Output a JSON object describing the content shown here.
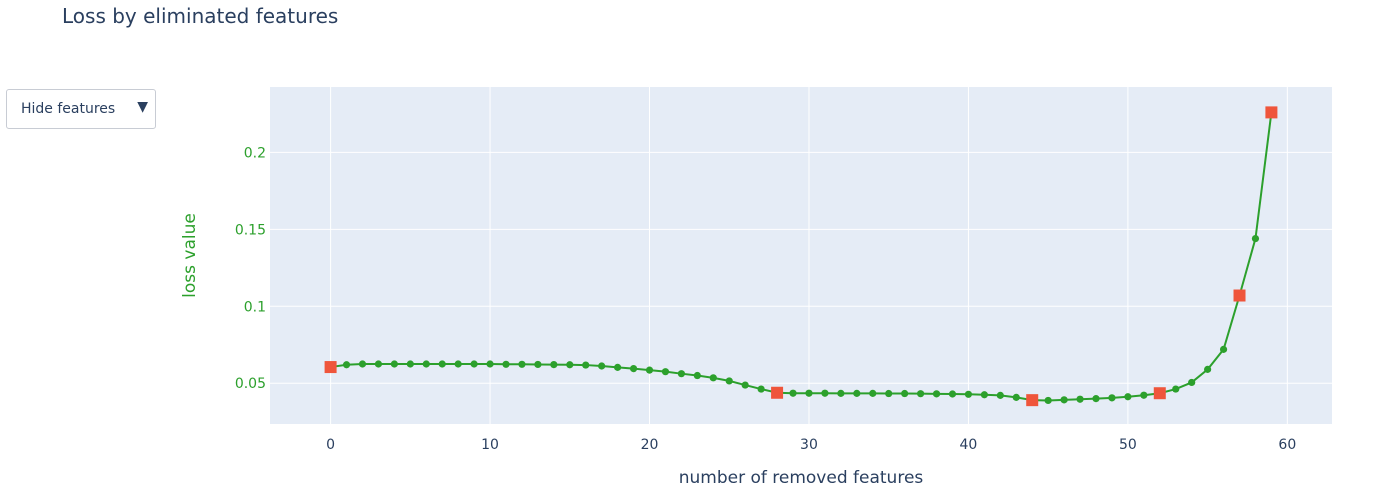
{
  "title": "Loss by eliminated features",
  "dropdown": {
    "selected": "Hide features",
    "arrow_icon": "triangle-down-icon"
  },
  "colors": {
    "line": "#2ca02c",
    "highlight": "#ef553b",
    "plot_bg": "#e5ecf6",
    "grid": "#ffffff",
    "text": "#2a3f5f"
  },
  "chart_data": {
    "type": "line",
    "xlabel": "number of removed features",
    "ylabel": "loss value",
    "xlim": [
      -3.8,
      62.8
    ],
    "ylim": [
      0.0235,
      0.2425
    ],
    "xticks": [
      0,
      10,
      20,
      30,
      40,
      50,
      60
    ],
    "xtick_labels": [
      "0",
      "10",
      "20",
      "30",
      "40",
      "50",
      "60"
    ],
    "yticks": [
      0.05,
      0.1,
      0.15,
      0.2
    ],
    "ytick_labels": [
      "0.05",
      "0.1",
      "0.15",
      "0.2"
    ],
    "grid": true,
    "series": [
      {
        "x": [
          0,
          1,
          2,
          3,
          4,
          5,
          6,
          7,
          8,
          9,
          10,
          11,
          12,
          13,
          14,
          15,
          16,
          17,
          18,
          19,
          20,
          21,
          22,
          23,
          24,
          25,
          26,
          27,
          28,
          29,
          30,
          31,
          32,
          33,
          34,
          35,
          36,
          37,
          38,
          39,
          40,
          41,
          42,
          43,
          44,
          45,
          46,
          47,
          48,
          49,
          50,
          51,
          52,
          53,
          54,
          55,
          56,
          57,
          58,
          59
        ],
        "y": [
          0.0605,
          0.062,
          0.0625,
          0.0625,
          0.0625,
          0.0625,
          0.0625,
          0.0625,
          0.0625,
          0.0625,
          0.0625,
          0.0623,
          0.0623,
          0.0622,
          0.0621,
          0.062,
          0.0618,
          0.0612,
          0.0603,
          0.0595,
          0.0585,
          0.0575,
          0.0562,
          0.055,
          0.0535,
          0.0515,
          0.0488,
          0.0462,
          0.0438,
          0.0435,
          0.0435,
          0.0435,
          0.0434,
          0.0434,
          0.0434,
          0.0433,
          0.0433,
          0.0432,
          0.0431,
          0.043,
          0.0428,
          0.0425,
          0.0421,
          0.0408,
          0.039,
          0.0388,
          0.0392,
          0.0396,
          0.04,
          0.0405,
          0.0412,
          0.0422,
          0.0435,
          0.0462,
          0.0505,
          0.059,
          0.072,
          0.107,
          0.144,
          0.226
        ],
        "color": "#2ca02c"
      },
      {
        "x": [
          0,
          28,
          44,
          52,
          57,
          59
        ],
        "y": [
          0.0605,
          0.0438,
          0.039,
          0.0435,
          0.107,
          0.226
        ],
        "color": "#ef553b",
        "marker": "square"
      }
    ]
  }
}
